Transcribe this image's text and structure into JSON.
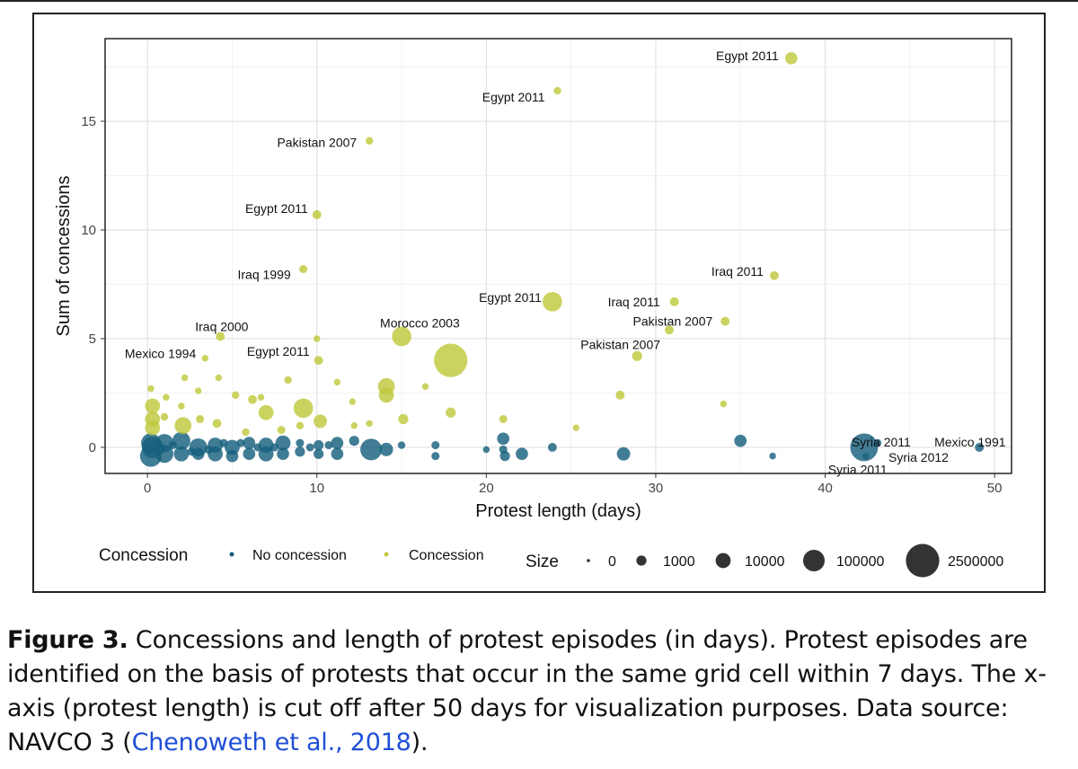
{
  "chart_data": {
    "type": "scatter",
    "xlabel": "Protest length (days)",
    "ylabel": "Sum of concessions",
    "xlim": [
      -2.5,
      51
    ],
    "ylim": [
      -1.2,
      18.8
    ],
    "xticks": [
      0,
      10,
      20,
      30,
      40,
      50
    ],
    "yticks": [
      0,
      5,
      10,
      15
    ],
    "grid": true,
    "colors": {
      "no_concession": "#17607e",
      "concession": "#bfc93d"
    },
    "legend": {
      "concession_title": "Concession",
      "concession_items": [
        {
          "label": "No concession",
          "key": "no_concession"
        },
        {
          "label": "Concession",
          "key": "concession"
        }
      ],
      "size_title": "Size",
      "size_items": [
        {
          "label": "0",
          "size": 0
        },
        {
          "label": "1000",
          "size": 1000
        },
        {
          "label": "10000",
          "size": 10000
        },
        {
          "label": "100000",
          "size": 100000
        },
        {
          "label": "2500000",
          "size": 2500000
        }
      ],
      "placement": "bottom"
    },
    "points": [
      {
        "x": 38,
        "y": 17.9,
        "size": 3000,
        "group": "concession",
        "label": "Egypt 2011",
        "anchor": "end",
        "dx": -14,
        "dy": -3
      },
      {
        "x": 24.2,
        "y": 16.4,
        "size": 200,
        "group": "concession",
        "label": "Egypt 2011",
        "anchor": "end",
        "dx": -14,
        "dy": 7
      },
      {
        "x": 13.1,
        "y": 14.1,
        "size": 200,
        "group": "concession",
        "label": "Pakistan 2007",
        "anchor": "end",
        "dx": -14,
        "dy": 2
      },
      {
        "x": 10,
        "y": 10.7,
        "size": 500,
        "group": "concession",
        "label": "Egypt 2011",
        "anchor": "end",
        "dx": -10,
        "dy": -7
      },
      {
        "x": 9.2,
        "y": 8.2,
        "size": 300,
        "group": "concession",
        "label": "Iraq 1999",
        "anchor": "end",
        "dx": -14,
        "dy": 6
      },
      {
        "x": 37,
        "y": 7.9,
        "size": 500,
        "group": "concession",
        "label": "Iraq 2011",
        "anchor": "end",
        "dx": -12,
        "dy": -5
      },
      {
        "x": 23.9,
        "y": 6.7,
        "size": 50000,
        "group": "concession",
        "label": "Egypt 2011",
        "anchor": "end",
        "dx": -12,
        "dy": -5
      },
      {
        "x": 31.1,
        "y": 6.7,
        "size": 500,
        "group": "concession",
        "label": "Iraq 2011",
        "anchor": "end",
        "dx": -16,
        "dy": 0
      },
      {
        "x": 34.1,
        "y": 5.8,
        "size": 500,
        "group": "concession",
        "label": "Pakistan 2007",
        "anchor": "end",
        "dx": -14,
        "dy": 0
      },
      {
        "x": 30.8,
        "y": 5.4,
        "size": 500,
        "group": "concession",
        "label": "Pakistan 2007",
        "anchor": "end",
        "dx": -10,
        "dy": 16
      },
      {
        "x": 28.9,
        "y": 4.2,
        "size": 1000,
        "group": "concession"
      },
      {
        "x": 15,
        "y": 5.1,
        "size": 50000,
        "group": "concession",
        "label": "Morocco 2003",
        "anchor": "start",
        "dx": -24,
        "dy": -15
      },
      {
        "x": 17.9,
        "y": 4.0,
        "size": 2500000,
        "group": "concession"
      },
      {
        "x": 4.3,
        "y": 5.1,
        "size": 500,
        "group": "concession",
        "label": "Iraq 2000",
        "anchor": "start",
        "dx": -28,
        "dy": -11
      },
      {
        "x": 10,
        "y": 5.0,
        "size": 100,
        "group": "concession"
      },
      {
        "x": 3.4,
        "y": 4.1,
        "size": 100,
        "group": "concession",
        "label": "Mexico 1994",
        "anchor": "end",
        "dx": -10,
        "dy": -5
      },
      {
        "x": 10.1,
        "y": 4.0,
        "size": 500,
        "group": "concession",
        "label": "Egypt 2011",
        "anchor": "end",
        "dx": -10,
        "dy": -10
      },
      {
        "x": 14.1,
        "y": 2.8,
        "size": 20000,
        "group": "concession"
      },
      {
        "x": 14.1,
        "y": 2.4,
        "size": 10000,
        "group": "concession"
      },
      {
        "x": 9.2,
        "y": 1.8,
        "size": 50000,
        "group": "concession"
      },
      {
        "x": 7.0,
        "y": 1.6,
        "size": 10000,
        "group": "concession"
      },
      {
        "x": 0.3,
        "y": 1.9,
        "size": 10000,
        "group": "concession"
      },
      {
        "x": 0.3,
        "y": 1.3,
        "size": 10000,
        "group": "concession"
      },
      {
        "x": 0.3,
        "y": 0.9,
        "size": 10000,
        "group": "concession"
      },
      {
        "x": 2.1,
        "y": 1.0,
        "size": 20000,
        "group": "concession"
      },
      {
        "x": 10.2,
        "y": 1.2,
        "size": 5000,
        "group": "concession"
      },
      {
        "x": 15.1,
        "y": 1.3,
        "size": 1000,
        "group": "concession"
      },
      {
        "x": 17.9,
        "y": 1.6,
        "size": 1000,
        "group": "concession"
      },
      {
        "x": 21,
        "y": 1.3,
        "size": 300,
        "group": "concession"
      },
      {
        "x": 27.9,
        "y": 2.4,
        "size": 500,
        "group": "concession"
      },
      {
        "x": 34,
        "y": 2.0,
        "size": 100,
        "group": "concession"
      },
      {
        "x": 25.3,
        "y": 0.9,
        "size": 100,
        "group": "concession"
      },
      {
        "x": 16.4,
        "y": 2.8,
        "size": 100,
        "group": "concession"
      },
      {
        "x": 11.2,
        "y": 3.0,
        "size": 100,
        "group": "concession"
      },
      {
        "x": 8.3,
        "y": 3.1,
        "size": 200,
        "group": "concession"
      },
      {
        "x": 5.2,
        "y": 2.4,
        "size": 200,
        "group": "concession"
      },
      {
        "x": 6.2,
        "y": 2.2,
        "size": 500,
        "group": "concession"
      },
      {
        "x": 3.1,
        "y": 1.3,
        "size": 300,
        "group": "concession"
      },
      {
        "x": 4.1,
        "y": 1.1,
        "size": 500,
        "group": "concession"
      },
      {
        "x": 12.1,
        "y": 2.1,
        "size": 100,
        "group": "concession"
      },
      {
        "x": 1.1,
        "y": 2.3,
        "size": 100,
        "group": "concession"
      },
      {
        "x": 1.0,
        "y": 1.4,
        "size": 200,
        "group": "concession"
      },
      {
        "x": 0.2,
        "y": 2.7,
        "size": 100,
        "group": "concession"
      },
      {
        "x": 4.2,
        "y": 3.2,
        "size": 100,
        "group": "concession"
      },
      {
        "x": 2.2,
        "y": 3.2,
        "size": 100,
        "group": "concession"
      },
      {
        "x": 12.2,
        "y": 1.0,
        "size": 100,
        "group": "concession"
      },
      {
        "x": 3.0,
        "y": 2.6,
        "size": 100,
        "group": "concession"
      },
      {
        "x": 7.9,
        "y": 0.8,
        "size": 300,
        "group": "concession"
      },
      {
        "x": 5.8,
        "y": 0.7,
        "size": 200,
        "group": "concession"
      },
      {
        "x": 6.7,
        "y": 2.3,
        "size": 100,
        "group": "concession"
      },
      {
        "x": 2.0,
        "y": 1.9,
        "size": 100,
        "group": "concession"
      },
      {
        "x": 9.0,
        "y": 1.0,
        "size": 200,
        "group": "concession"
      },
      {
        "x": 13.1,
        "y": 1.1,
        "size": 100,
        "group": "concession"
      },
      {
        "x": 42.3,
        "y": 0.0,
        "size": 600000,
        "group": "no_concession",
        "label": "Syria 2011",
        "anchor": "start",
        "dx": -14,
        "dy": -6
      },
      {
        "x": 42.4,
        "y": -0.4,
        "size": 100,
        "group": "no_concession",
        "label": "Syria 2011",
        "anchor": "start",
        "dx": -42,
        "dy": 15
      },
      {
        "x": 43.1,
        "y": 0.2,
        "size": 200,
        "group": "no_concession",
        "label": "Syria 2012",
        "anchor": "start",
        "dx": 12,
        "dy": 16
      },
      {
        "x": 49.1,
        "y": 0.0,
        "size": 500,
        "group": "no_concession",
        "label": "Mexico 1991",
        "anchor": "start",
        "dx": -50,
        "dy": -6
      },
      {
        "x": 35,
        "y": 0.3,
        "size": 3000,
        "group": "no_concession"
      },
      {
        "x": 36.9,
        "y": -0.4,
        "size": 100,
        "group": "no_concession"
      },
      {
        "x": 28.1,
        "y": -0.3,
        "size": 5000,
        "group": "no_concession"
      },
      {
        "x": 23.9,
        "y": 0.0,
        "size": 500,
        "group": "no_concession"
      },
      {
        "x": 22.1,
        "y": -0.3,
        "size": 3000,
        "group": "no_concession"
      },
      {
        "x": 21.0,
        "y": 0.4,
        "size": 3000,
        "group": "no_concession"
      },
      {
        "x": 21.0,
        "y": -0.1,
        "size": 300,
        "group": "no_concession"
      },
      {
        "x": 21.1,
        "y": -0.4,
        "size": 1000,
        "group": "no_concession"
      },
      {
        "x": 20.0,
        "y": -0.1,
        "size": 100,
        "group": "no_concession"
      },
      {
        "x": 17.0,
        "y": 0.1,
        "size": 300,
        "group": "no_concession"
      },
      {
        "x": 17.0,
        "y": -0.4,
        "size": 300,
        "group": "no_concession"
      },
      {
        "x": 15.0,
        "y": 0.1,
        "size": 200,
        "group": "no_concession"
      },
      {
        "x": 13.2,
        "y": -0.1,
        "size": 100000,
        "group": "no_concession"
      },
      {
        "x": 14.1,
        "y": -0.1,
        "size": 5000,
        "group": "no_concession"
      },
      {
        "x": 12.2,
        "y": 0.3,
        "size": 1000,
        "group": "no_concession"
      },
      {
        "x": 11.2,
        "y": 0.2,
        "size": 3000,
        "group": "no_concession"
      },
      {
        "x": 11.2,
        "y": -0.3,
        "size": 3000,
        "group": "no_concession"
      },
      {
        "x": 10.1,
        "y": 0.1,
        "size": 1000,
        "group": "no_concession"
      },
      {
        "x": 10.1,
        "y": -0.3,
        "size": 1000,
        "group": "no_concession"
      },
      {
        "x": 9.0,
        "y": 0.2,
        "size": 300,
        "group": "no_concession"
      },
      {
        "x": 9.0,
        "y": -0.2,
        "size": 1000,
        "group": "no_concession"
      },
      {
        "x": 8.0,
        "y": 0.2,
        "size": 10000,
        "group": "no_concession"
      },
      {
        "x": 8.0,
        "y": -0.3,
        "size": 3000,
        "group": "no_concession"
      },
      {
        "x": 7.0,
        "y": 0.1,
        "size": 10000,
        "group": "no_concession"
      },
      {
        "x": 7.0,
        "y": -0.3,
        "size": 10000,
        "group": "no_concession"
      },
      {
        "x": 6.0,
        "y": 0.2,
        "size": 3000,
        "group": "no_concession"
      },
      {
        "x": 6.0,
        "y": -0.3,
        "size": 3000,
        "group": "no_concession"
      },
      {
        "x": 5.0,
        "y": 0.0,
        "size": 10000,
        "group": "no_concession"
      },
      {
        "x": 5.0,
        "y": -0.4,
        "size": 3000,
        "group": "no_concession"
      },
      {
        "x": 4.0,
        "y": 0.1,
        "size": 10000,
        "group": "no_concession"
      },
      {
        "x": 4.0,
        "y": -0.3,
        "size": 10000,
        "group": "no_concession"
      },
      {
        "x": 3.0,
        "y": 0.0,
        "size": 30000,
        "group": "no_concession"
      },
      {
        "x": 3.0,
        "y": -0.3,
        "size": 3000,
        "group": "no_concession"
      },
      {
        "x": 2.0,
        "y": 0.3,
        "size": 30000,
        "group": "no_concession"
      },
      {
        "x": 2.0,
        "y": -0.3,
        "size": 10000,
        "group": "no_concession"
      },
      {
        "x": 1.0,
        "y": 0.2,
        "size": 30000,
        "group": "no_concession"
      },
      {
        "x": 1.0,
        "y": -0.3,
        "size": 30000,
        "group": "no_concession"
      },
      {
        "x": 0.2,
        "y": 0.2,
        "size": 50000,
        "group": "no_concession"
      },
      {
        "x": 0.2,
        "y": -0.4,
        "size": 100000,
        "group": "no_concession"
      },
      {
        "x": 0.3,
        "y": 0.0,
        "size": 100000,
        "group": "no_concession"
      },
      {
        "x": 5.5,
        "y": 0.2,
        "size": 300,
        "group": "no_concession"
      },
      {
        "x": 3.6,
        "y": -0.1,
        "size": 300,
        "group": "no_concession"
      },
      {
        "x": 6.5,
        "y": 0.0,
        "size": 300,
        "group": "no_concession"
      },
      {
        "x": 1.5,
        "y": 0.1,
        "size": 300,
        "group": "no_concession"
      },
      {
        "x": 2.6,
        "y": -0.2,
        "size": 300,
        "group": "no_concession"
      },
      {
        "x": 7.5,
        "y": 0.0,
        "size": 300,
        "group": "no_concession"
      },
      {
        "x": 9.6,
        "y": 0.0,
        "size": 300,
        "group": "no_concession"
      },
      {
        "x": 10.7,
        "y": 0.1,
        "size": 300,
        "group": "no_concession"
      },
      {
        "x": 0.8,
        "y": -0.1,
        "size": 300,
        "group": "no_concession"
      },
      {
        "x": 4.5,
        "y": 0.2,
        "size": 300,
        "group": "no_concession"
      }
    ]
  },
  "caption": {
    "label": "Figure 3.",
    "text_before_link": " Concessions and length of protest episodes (in days). Protest episodes are identified on the basis of protests that occur in the same grid cell within 7 days. The x-axis (protest length) is cut off after 50 days for visualization purposes. Data source: NAVCO 3 (",
    "link_text": "Chenoweth et al., 2018",
    "text_after_link": ")."
  }
}
